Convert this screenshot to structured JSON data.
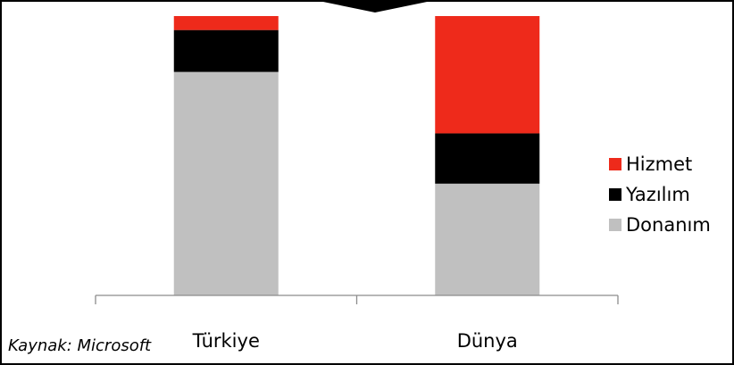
{
  "source": "Kaynak: Microsoft",
  "chart_data": {
    "type": "bar",
    "stacked": true,
    "normalized_percent": true,
    "categories": [
      "Türkiye",
      "Dünya"
    ],
    "series": [
      {
        "name": "Donanım",
        "color": "#c0c0c0",
        "values": [
          80,
          40
        ]
      },
      {
        "name": "Yazılım",
        "color": "#000000",
        "values": [
          15,
          18
        ]
      },
      {
        "name": "Hizmet",
        "color": "#ee2a1b",
        "values": [
          5,
          42
        ]
      }
    ],
    "ylim": [
      0,
      100
    ],
    "legend_position": "right",
    "legend_order": [
      "Hizmet",
      "Yazılım",
      "Donanım"
    ],
    "grid": false
  }
}
